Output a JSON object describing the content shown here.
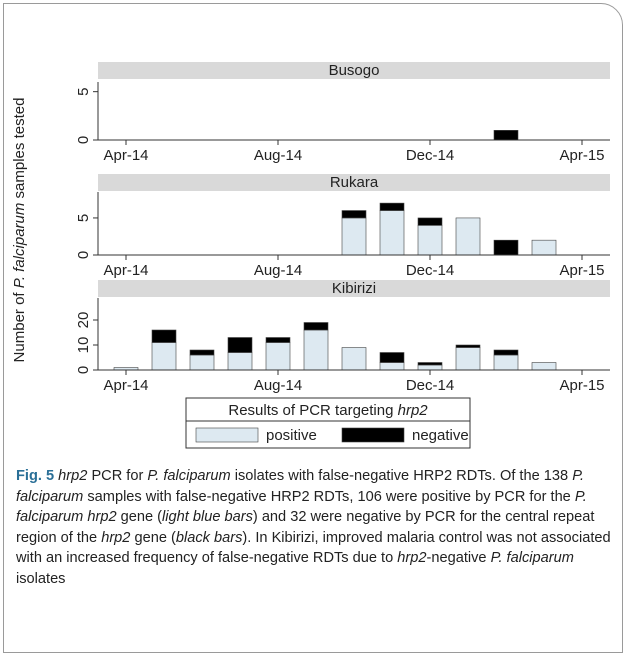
{
  "chart_data": [
    {
      "type": "bar",
      "title": "Busogo",
      "categories": [
        "Apr-14",
        null,
        null,
        null,
        "Aug-14",
        null,
        null,
        null,
        "Dec-14",
        null,
        null,
        null,
        "Apr-15"
      ],
      "series": [
        {
          "name": "positive",
          "color": "#dde9f1",
          "values": [
            0,
            0,
            0,
            0,
            0,
            0,
            0,
            0,
            0,
            0,
            0,
            0,
            0
          ]
        },
        {
          "name": "negative",
          "color": "#000000",
          "values": [
            0,
            0,
            0,
            0,
            0,
            0,
            0,
            0,
            0,
            0,
            1,
            0,
            0
          ]
        }
      ],
      "ylim": [
        0,
        6
      ],
      "yticks": [
        0,
        5
      ]
    },
    {
      "type": "bar",
      "title": "Rukara",
      "categories": [
        "Apr-14",
        null,
        null,
        null,
        "Aug-14",
        null,
        null,
        null,
        "Dec-14",
        null,
        null,
        null,
        "Apr-15"
      ],
      "series": [
        {
          "name": "positive",
          "color": "#dde9f1",
          "values": [
            0,
            0,
            0,
            0,
            0,
            0,
            5,
            6,
            4,
            5,
            0,
            2,
            0
          ]
        },
        {
          "name": "negative",
          "color": "#000000",
          "values": [
            0,
            0,
            0,
            0,
            0,
            0,
            1,
            1,
            1,
            0,
            2,
            0,
            0
          ]
        }
      ],
      "ylim": [
        0,
        8.5
      ],
      "yticks": [
        0,
        5
      ]
    },
    {
      "type": "bar",
      "title": "Kibirizi",
      "categories": [
        "Apr-14",
        null,
        null,
        null,
        "Aug-14",
        null,
        null,
        null,
        "Dec-14",
        null,
        null,
        null,
        "Apr-15"
      ],
      "series": [
        {
          "name": "positive",
          "color": "#dde9f1",
          "values": [
            1,
            11,
            6,
            7,
            11,
            16,
            9,
            3,
            2,
            9,
            6,
            3,
            0
          ]
        },
        {
          "name": "negative",
          "color": "#000000",
          "values": [
            0,
            5,
            2,
            6,
            2,
            3,
            0,
            4,
            1,
            1,
            2,
            0,
            0
          ]
        }
      ],
      "ylim": [
        0,
        28.8
      ],
      "yticks": [
        0,
        10,
        20
      ]
    }
  ],
  "y_label": [
    {
      "text": "Number of "
    },
    {
      "text": "P. falciparum",
      "style": "italic"
    },
    {
      "text": " samples tested"
    }
  ],
  "legend_title": [
    {
      "text": "Results of PCR targeting "
    },
    {
      "text": "hrp2",
      "style": "italic"
    }
  ],
  "caption": [
    {
      "text": "Fig. 5",
      "style": "bold"
    },
    {
      "text": " "
    },
    {
      "text": "hrp2",
      "style": "italic"
    },
    {
      "text": " PCR for "
    },
    {
      "text": "P. falciparum",
      "style": "italic"
    },
    {
      "text": " isolates with false-negative HRP2 RDTs. Of the 138 "
    },
    {
      "text": "P. falciparum",
      "style": "italic"
    },
    {
      "text": " samples with false-negative HRP2 RDTs, 106 were positive by PCR for the "
    },
    {
      "text": "P. falciparum hrp2",
      "style": "italic"
    },
    {
      "text": " gene ("
    },
    {
      "text": "light blue bars",
      "style": "italic"
    },
    {
      "text": ") and 32 were negative by PCR for the central repeat region of the "
    },
    {
      "text": "hrp2",
      "style": "italic"
    },
    {
      "text": " gene ("
    },
    {
      "text": "black bars",
      "style": "italic"
    },
    {
      "text": "). In Kibirizi, improved malaria control was not associated with an increased frequency of false-negative RDTs due to "
    },
    {
      "text": "hrp2",
      "style": "italic"
    },
    {
      "text": "-negative "
    },
    {
      "text": "P. falciparum",
      "style": "italic"
    },
    {
      "text": " isolates"
    }
  ]
}
